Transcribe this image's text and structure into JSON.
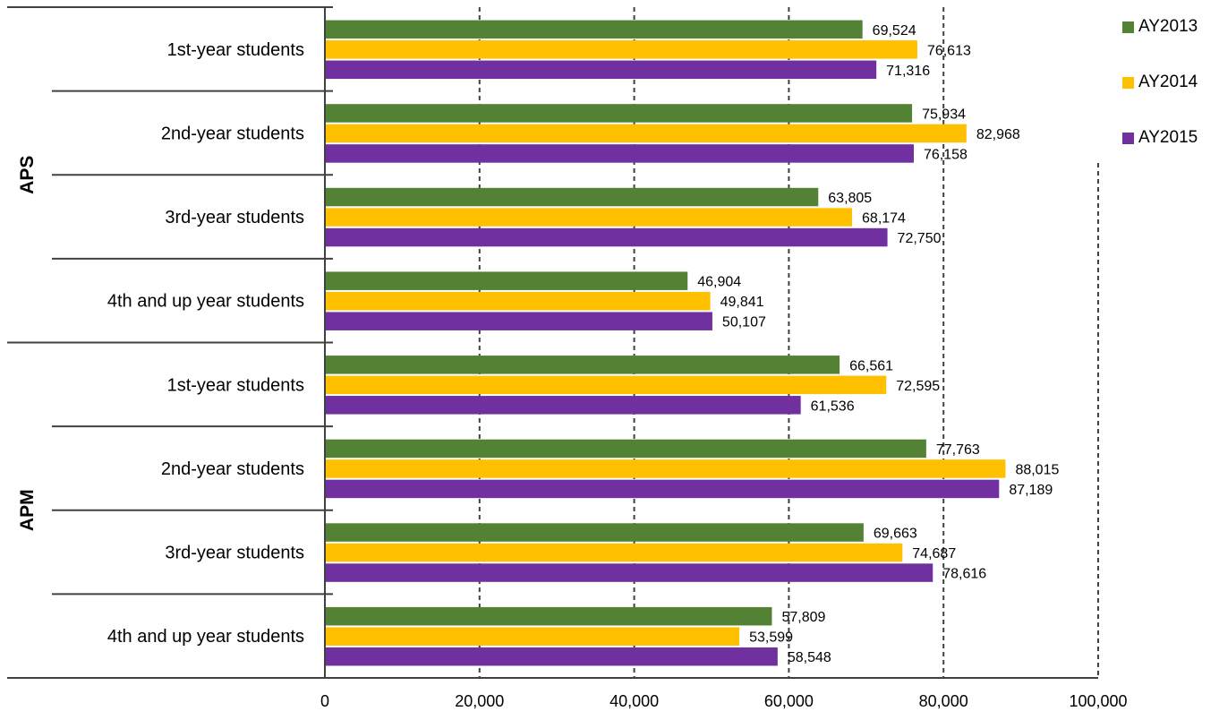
{
  "chart_data": {
    "type": "bar",
    "orientation": "horizontal",
    "title": "",
    "xlabel": "",
    "ylabel": "",
    "xlim": [
      0,
      100000
    ],
    "x_ticks": [
      0,
      20000,
      40000,
      60000,
      80000,
      100000
    ],
    "x_tick_labels": [
      "0",
      "20,000",
      "40,000",
      "60,000",
      "80,000",
      "100,000"
    ],
    "gridlines": "vertical dashed",
    "legend_position": "top-right",
    "groups": [
      {
        "name": "APS",
        "categories": [
          "1st-year students",
          "2nd-year students",
          "3rd-year students",
          "4th and up year students"
        ]
      },
      {
        "name": "APM",
        "categories": [
          "1st-year students",
          "2nd-year students",
          "3rd-year students",
          "4th and up year students"
        ]
      }
    ],
    "series": [
      {
        "name": "AY2013",
        "color": "#548235",
        "values": [
          69524,
          75934,
          63805,
          46904,
          66561,
          77763,
          69663,
          57809
        ],
        "labels": [
          "69,524",
          "75,934",
          "63,805",
          "46,904",
          "66,561",
          "77,763",
          "69,663",
          "57,809"
        ]
      },
      {
        "name": "AY2014",
        "color": "#FFC000",
        "values": [
          76613,
          82968,
          68174,
          49841,
          72595,
          88015,
          74687,
          53599
        ],
        "labels": [
          "76,613",
          "82,968",
          "68,174",
          "49,841",
          "72,595",
          "88,015",
          "74,687",
          "53,599"
        ]
      },
      {
        "name": "AY2015",
        "color": "#7030A0",
        "values": [
          71316,
          76158,
          72750,
          50107,
          61536,
          87189,
          78616,
          58548
        ],
        "labels": [
          "71,316",
          "76,158",
          "72,750",
          "50,107",
          "61,536",
          "87,189",
          "78,616",
          "58,548"
        ]
      }
    ]
  }
}
